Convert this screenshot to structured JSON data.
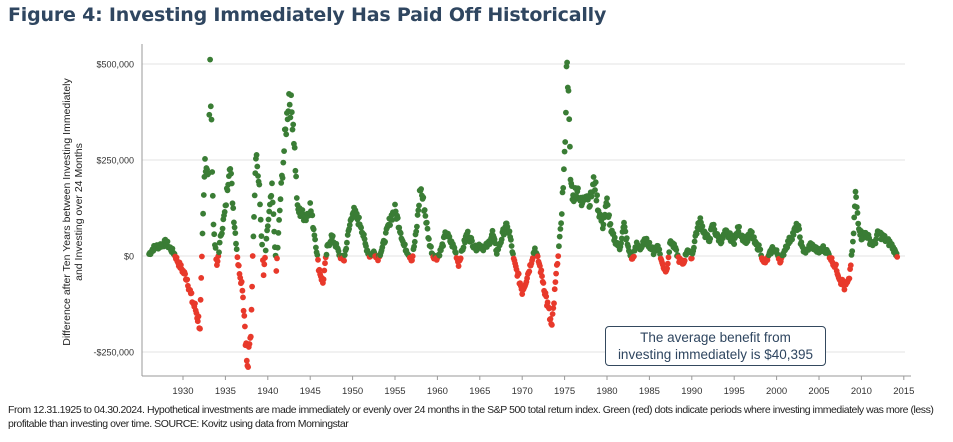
{
  "figure": {
    "title": "Figure 4: Investing Immediately Has Paid Off Historically",
    "source_note": "From 12.31.1925 to 04.30.2024. Hypothetical investments are made immediately or evenly over 24 months in the S&P 500 total return index. Green (red) dots indicate periods where investing immediately was more (less) profitable than investing over time. SOURCE: Kovitz using data from Morningstar",
    "annotation_line1": "The average benefit from",
    "annotation_line2": "investing immediately is $40,395"
  },
  "colors": {
    "title": "#2f4660",
    "positive": "#3a7d35",
    "negative": "#e8392b",
    "grid": "#e3e3e3",
    "axis": "#999999",
    "text": "#333333"
  },
  "chart_data": {
    "type": "scatter",
    "title": "Figure 4: Investing Immediately Has Paid Off Historically",
    "ylabel_line1": "Difference after Ten Years between Investing Immediately",
    "ylabel_line2": "and Investing over 24 Months",
    "xlabel": "",
    "xlim": [
      1926,
      2015
    ],
    "ylim": [
      -310000,
      560000
    ],
    "x_ticks": [
      1930,
      1935,
      1940,
      1945,
      1950,
      1955,
      1960,
      1965,
      1970,
      1975,
      1980,
      1985,
      1990,
      1995,
      2000,
      2005,
      2010,
      2015
    ],
    "x_tick_labels": [
      "1930",
      "1935",
      "1940",
      "1945",
      "1950",
      "1955",
      "1960",
      "1965",
      "1970",
      "1975",
      "1980",
      "1985",
      "1990",
      "1995",
      "2000",
      "2005",
      "2010",
      "2015"
    ],
    "y_ticks": [
      500000,
      250000,
      0,
      -250000
    ],
    "y_tick_labels": [
      "$500,000",
      "$250,000",
      "$0",
      "-$250,000"
    ],
    "grid": true,
    "legend": "none",
    "color_rule": "green when value >= 0 (investing immediately more profitable), red when value < 0",
    "average_benefit": 40395,
    "series_anchors": [
      [
        1926.0,
        5000
      ],
      [
        1926.5,
        20000
      ],
      [
        1927.5,
        30000
      ],
      [
        1928.0,
        35000
      ],
      [
        1928.5,
        20000
      ],
      [
        1929.0,
        5000
      ],
      [
        1929.5,
        -20000
      ],
      [
        1930.0,
        -40000
      ],
      [
        1930.5,
        -60000
      ],
      [
        1931.0,
        -110000
      ],
      [
        1931.5,
        -140000
      ],
      [
        1932.0,
        -180000
      ],
      [
        1932.3,
        50000
      ],
      [
        1932.6,
        250000
      ],
      [
        1933.0,
        220000
      ],
      [
        1933.2,
        490000
      ],
      [
        1933.6,
        80000
      ],
      [
        1934.0,
        -30000
      ],
      [
        1934.5,
        60000
      ],
      [
        1935.0,
        120000
      ],
      [
        1935.5,
        250000
      ],
      [
        1936.0,
        100000
      ],
      [
        1936.5,
        -20000
      ],
      [
        1937.0,
        -80000
      ],
      [
        1937.3,
        -180000
      ],
      [
        1937.6,
        -300000
      ],
      [
        1938.0,
        -200000
      ],
      [
        1938.3,
        60000
      ],
      [
        1938.6,
        280000
      ],
      [
        1939.0,
        170000
      ],
      [
        1939.5,
        -50000
      ],
      [
        1940.0,
        80000
      ],
      [
        1940.5,
        170000
      ],
      [
        1941.0,
        -40000
      ],
      [
        1941.5,
        150000
      ],
      [
        1942.0,
        300000
      ],
      [
        1942.5,
        420000
      ],
      [
        1943.0,
        350000
      ],
      [
        1943.5,
        120000
      ],
      [
        1944.0,
        110000
      ],
      [
        1944.5,
        100000
      ],
      [
        1945.0,
        130000
      ],
      [
        1945.5,
        60000
      ],
      [
        1946.0,
        -30000
      ],
      [
        1946.5,
        -70000
      ],
      [
        1947.0,
        20000
      ],
      [
        1947.5,
        50000
      ],
      [
        1948.0,
        30000
      ],
      [
        1948.5,
        0
      ],
      [
        1949.0,
        -10000
      ],
      [
        1949.5,
        60000
      ],
      [
        1950.0,
        120000
      ],
      [
        1950.5,
        100000
      ],
      [
        1951.0,
        80000
      ],
      [
        1951.5,
        30000
      ],
      [
        1952.0,
        0
      ],
      [
        1952.5,
        10000
      ],
      [
        1953.0,
        -5000
      ],
      [
        1953.5,
        20000
      ],
      [
        1954.0,
        60000
      ],
      [
        1954.5,
        100000
      ],
      [
        1955.0,
        120000
      ],
      [
        1955.5,
        80000
      ],
      [
        1956.0,
        30000
      ],
      [
        1956.5,
        10000
      ],
      [
        1957.0,
        -10000
      ],
      [
        1957.5,
        60000
      ],
      [
        1958.0,
        180000
      ],
      [
        1958.5,
        120000
      ],
      [
        1959.0,
        40000
      ],
      [
        1959.5,
        0
      ],
      [
        1960.0,
        -5000
      ],
      [
        1960.5,
        20000
      ],
      [
        1961.0,
        60000
      ],
      [
        1961.5,
        40000
      ],
      [
        1962.0,
        20000
      ],
      [
        1962.5,
        -20000
      ],
      [
        1963.0,
        20000
      ],
      [
        1963.5,
        60000
      ],
      [
        1964.0,
        40000
      ],
      [
        1964.5,
        20000
      ],
      [
        1965.0,
        30000
      ],
      [
        1965.5,
        20000
      ],
      [
        1966.0,
        30000
      ],
      [
        1966.5,
        60000
      ],
      [
        1967.0,
        10000
      ],
      [
        1967.5,
        40000
      ],
      [
        1968.0,
        80000
      ],
      [
        1968.5,
        60000
      ],
      [
        1969.0,
        -10000
      ],
      [
        1969.5,
        -50000
      ],
      [
        1970.0,
        -90000
      ],
      [
        1970.5,
        -60000
      ],
      [
        1971.0,
        -20000
      ],
      [
        1971.5,
        20000
      ],
      [
        1972.0,
        -20000
      ],
      [
        1972.5,
        -70000
      ],
      [
        1973.0,
        -130000
      ],
      [
        1973.5,
        -190000
      ],
      [
        1974.0,
        -50000
      ],
      [
        1974.5,
        60000
      ],
      [
        1975.0,
        250000
      ],
      [
        1975.3,
        540000
      ],
      [
        1975.7,
        200000
      ],
      [
        1976.0,
        150000
      ],
      [
        1976.5,
        180000
      ],
      [
        1977.0,
        130000
      ],
      [
        1977.5,
        170000
      ],
      [
        1978.0,
        140000
      ],
      [
        1978.5,
        200000
      ],
      [
        1979.0,
        120000
      ],
      [
        1979.5,
        80000
      ],
      [
        1980.0,
        140000
      ],
      [
        1980.5,
        60000
      ],
      [
        1981.0,
        40000
      ],
      [
        1981.5,
        20000
      ],
      [
        1982.0,
        80000
      ],
      [
        1982.5,
        20000
      ],
      [
        1983.0,
        -10000
      ],
      [
        1983.5,
        30000
      ],
      [
        1984.0,
        20000
      ],
      [
        1984.5,
        40000
      ],
      [
        1985.0,
        30000
      ],
      [
        1985.5,
        10000
      ],
      [
        1986.0,
        30000
      ],
      [
        1986.5,
        -20000
      ],
      [
        1987.0,
        -40000
      ],
      [
        1987.5,
        40000
      ],
      [
        1988.0,
        20000
      ],
      [
        1988.5,
        -10000
      ],
      [
        1989.0,
        -20000
      ],
      [
        1989.5,
        20000
      ],
      [
        1990.0,
        -5000
      ],
      [
        1990.5,
        60000
      ],
      [
        1991.0,
        90000
      ],
      [
        1991.5,
        60000
      ],
      [
        1992.0,
        40000
      ],
      [
        1992.5,
        80000
      ],
      [
        1993.0,
        50000
      ],
      [
        1993.5,
        40000
      ],
      [
        1994.0,
        60000
      ],
      [
        1994.5,
        50000
      ],
      [
        1995.0,
        40000
      ],
      [
        1995.5,
        70000
      ],
      [
        1996.0,
        50000
      ],
      [
        1996.5,
        40000
      ],
      [
        1997.0,
        60000
      ],
      [
        1997.5,
        30000
      ],
      [
        1998.0,
        20000
      ],
      [
        1998.5,
        -20000
      ],
      [
        1999.0,
        -5000
      ],
      [
        1999.5,
        20000
      ],
      [
        2000.0,
        10000
      ],
      [
        2000.5,
        -15000
      ],
      [
        2001.0,
        20000
      ],
      [
        2001.5,
        40000
      ],
      [
        2002.0,
        60000
      ],
      [
        2002.5,
        80000
      ],
      [
        2003.0,
        20000
      ],
      [
        2003.5,
        10000
      ],
      [
        2004.0,
        30000
      ],
      [
        2004.5,
        20000
      ],
      [
        2005.0,
        10000
      ],
      [
        2005.5,
        20000
      ],
      [
        2006.0,
        10000
      ],
      [
        2006.5,
        -10000
      ],
      [
        2007.0,
        -30000
      ],
      [
        2007.5,
        -60000
      ],
      [
        2008.0,
        -80000
      ],
      [
        2008.5,
        -70000
      ],
      [
        2009.0,
        30000
      ],
      [
        2009.3,
        160000
      ],
      [
        2009.7,
        80000
      ],
      [
        2010.0,
        50000
      ],
      [
        2010.5,
        60000
      ],
      [
        2011.0,
        40000
      ],
      [
        2011.5,
        30000
      ],
      [
        2012.0,
        60000
      ],
      [
        2012.5,
        50000
      ],
      [
        2013.0,
        40000
      ],
      [
        2013.5,
        30000
      ],
      [
        2014.0,
        10000
      ],
      [
        2014.3,
        0
      ]
    ]
  }
}
